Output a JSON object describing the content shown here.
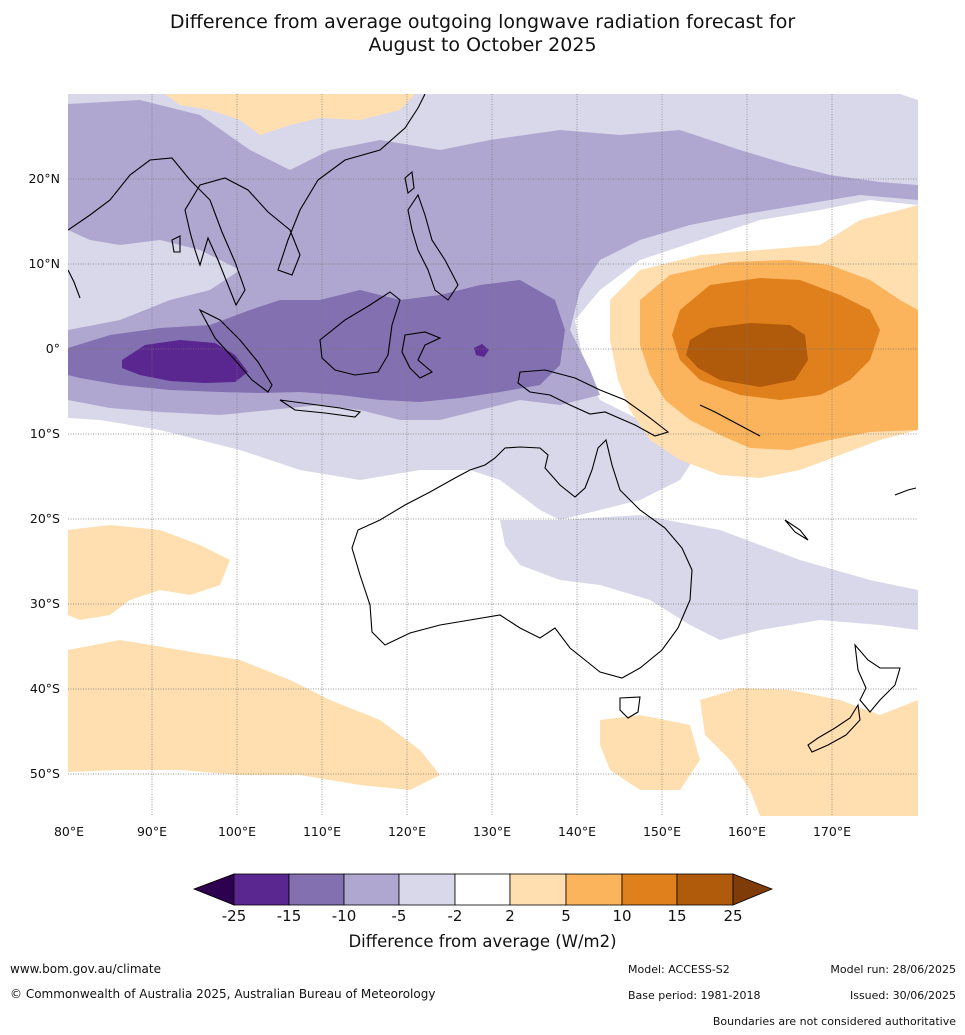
{
  "title_line1": "Difference from average outgoing longwave radiation forecast for",
  "title_line2": "August to October 2025",
  "lat_labels": [
    "20°N",
    "10°N",
    "0°",
    "10°S",
    "20°S",
    "30°S",
    "40°S",
    "50°S"
  ],
  "lon_labels": [
    "80°E",
    "90°E",
    "100°E",
    "110°E",
    "120°E",
    "130°E",
    "140°E",
    "150°E",
    "160°E",
    "170°E"
  ],
  "colorbar": {
    "labels": [
      "-25",
      "-15",
      "-10",
      "-5",
      "-2",
      "2",
      "5",
      "10",
      "15",
      "25"
    ],
    "colors": [
      "#5a2690",
      "#8270b0",
      "#afa7d0",
      "#d8d8ea",
      "#ffffff",
      "#ffdfb0",
      "#fbb35c",
      "#e0801c",
      "#b05a0c"
    ],
    "low_extend_color": "#2e0050",
    "high_extend_color": "#7f3b08",
    "title": "Difference from average (W/m2)"
  },
  "footer": {
    "url": "www.bom.gov.au/climate",
    "copyright": "© Commonwealth of Australia 2025, Australian Bureau of Meteorology",
    "model": "Model: ACCESS-S2",
    "model_run": "Model run: 28/06/2025",
    "base_period": "Base period: 1981-2018",
    "issued": "Issued: 30/06/2025",
    "disclaimer": "Boundaries are not considered authoritative"
  }
}
